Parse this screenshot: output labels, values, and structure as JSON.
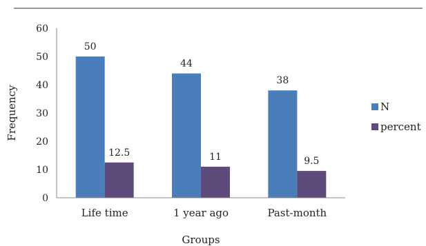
{
  "chart_data": {
    "type": "bar",
    "title": "",
    "xlabel": "Groups",
    "ylabel": "Frequency",
    "ylim": [
      0,
      60
    ],
    "yticks": [
      0,
      10,
      20,
      30,
      40,
      50,
      60
    ],
    "categories": [
      "Life time",
      "1 year ago",
      "Past-month"
    ],
    "series": [
      {
        "name": "N",
        "values": [
          50,
          44,
          38
        ],
        "labels": [
          "50",
          "44",
          "38"
        ],
        "color": "#4a7ebb"
      },
      {
        "name": "percent",
        "values": [
          12.5,
          11,
          9.5
        ],
        "labels": [
          "12.5",
          "11",
          "9.5"
        ],
        "color": "#5e4a7b"
      }
    ],
    "grid": false,
    "legend": "right"
  }
}
